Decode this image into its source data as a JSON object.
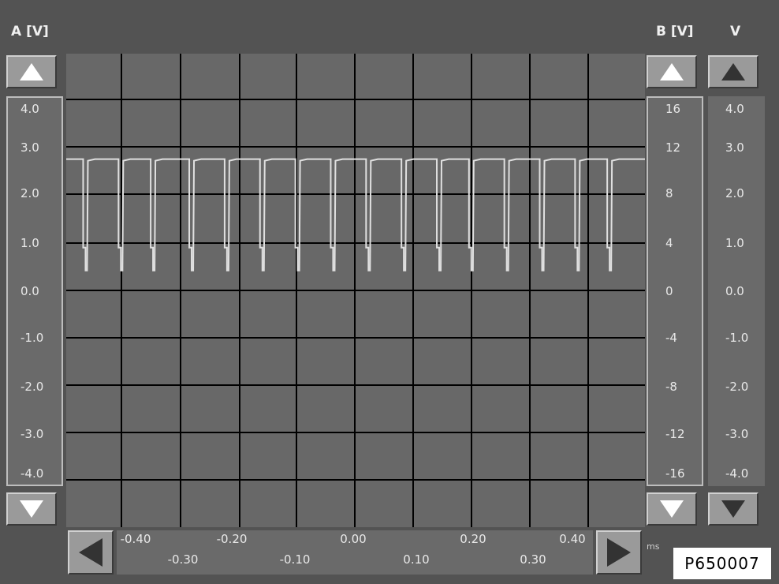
{
  "headers": {
    "a": "A [V]",
    "b": "B [V]",
    "v": "V"
  },
  "scale_a": [
    "4.0",
    "3.0",
    "2.0",
    "1.0",
    "0.0",
    "-1.0",
    "-2.0",
    "-3.0",
    "-4.0"
  ],
  "scale_b": [
    "16",
    "12",
    "8",
    "4",
    "0",
    "-4",
    "-8",
    "-12",
    "-16"
  ],
  "scale_v": [
    "4.0",
    "3.0",
    "2.0",
    "1.0",
    "0.0",
    "-1.0",
    "-2.0",
    "-3.0",
    "-4.0"
  ],
  "x_ticks_top": [
    "-0.40",
    "-0.20",
    "0.00",
    "0.20",
    "0.40"
  ],
  "x_ticks_bottom": [
    "-0.30",
    "-0.10",
    "0.10",
    "0.30"
  ],
  "x_unit": "ms",
  "figure_code": "P650007",
  "colors": {
    "trace": "#e0e0e0",
    "grid": "#000000",
    "background": "#535353"
  },
  "chart_data": {
    "type": "line",
    "title": "",
    "xlabel": "ms",
    "ylabel": "A [V]",
    "xlim": [
      -0.45,
      0.45
    ],
    "ylim": [
      -4.5,
      4.5
    ],
    "grid": true,
    "series": [
      {
        "values_description": "pulse train",
        "high_level": 2.75,
        "low_level": 0.4,
        "pulse_times": [
          -0.42,
          -0.365,
          -0.315,
          -0.255,
          -0.2,
          -0.145,
          -0.09,
          -0.035,
          0.02,
          0.075,
          0.13,
          0.18,
          0.235,
          0.29,
          0.345,
          0.395
        ]
      }
    ]
  }
}
